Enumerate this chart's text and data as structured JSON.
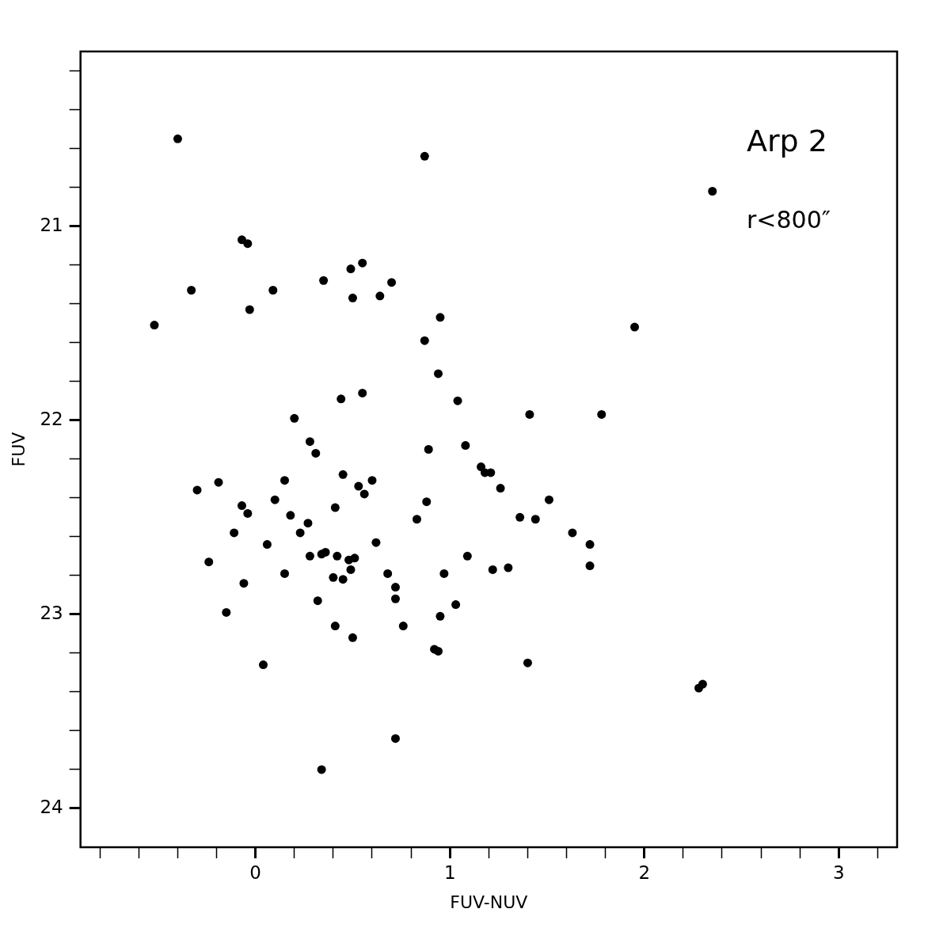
{
  "chart_data": {
    "type": "scatter",
    "xlabel": "FUV-NUV",
    "ylabel": "FUV",
    "marker": "circle",
    "grid": false,
    "legend": false,
    "annotations": [
      "Arp 2",
      "r<800″"
    ],
    "xlim": [
      -0.9,
      3.3
    ],
    "ylim": [
      24.2,
      20.1
    ],
    "xticks": [
      {
        "value": -0.8,
        "label": null
      },
      {
        "value": -0.6,
        "label": null
      },
      {
        "value": -0.4,
        "label": null
      },
      {
        "value": -0.2,
        "label": null
      },
      0,
      {
        "value": 0.2,
        "label": null
      },
      {
        "value": 0.4,
        "label": null
      },
      {
        "value": 0.6,
        "label": null
      },
      {
        "value": 0.8,
        "label": null
      },
      1,
      {
        "value": 1.2,
        "label": null
      },
      {
        "value": 1.4,
        "label": null
      },
      {
        "value": 1.6,
        "label": null
      },
      {
        "value": 1.8,
        "label": null
      },
      2,
      {
        "value": 2.2,
        "label": null
      },
      {
        "value": 2.4,
        "label": null
      },
      {
        "value": 2.6,
        "label": null
      },
      {
        "value": 2.8,
        "label": null
      },
      3,
      {
        "value": 3.2,
        "label": null
      }
    ],
    "yticks": [
      {
        "value": 20.2,
        "label": null
      },
      {
        "value": 20.4,
        "label": null
      },
      {
        "value": 20.6,
        "label": null
      },
      {
        "value": 20.8,
        "label": null
      },
      21,
      {
        "value": 21.2,
        "label": null
      },
      {
        "value": 21.4,
        "label": null
      },
      {
        "value": 21.6,
        "label": null
      },
      {
        "value": 21.8,
        "label": null
      },
      22,
      {
        "value": 22.2,
        "label": null
      },
      {
        "value": 22.4,
        "label": null
      },
      {
        "value": 22.6,
        "label": null
      },
      {
        "value": 22.8,
        "label": null
      },
      23,
      {
        "value": 23.2,
        "label": null
      },
      {
        "value": 23.4,
        "label": null
      },
      {
        "value": 23.6,
        "label": null
      },
      {
        "value": 23.8,
        "label": null
      },
      24
    ],
    "series": [
      {
        "color": "#000000",
        "x": [
          -0.4,
          0.87,
          2.35,
          -0.07,
          -0.04,
          0.55,
          0.49,
          0.35,
          0.7,
          -0.33,
          0.09,
          0.5,
          0.64,
          -0.03,
          -0.52,
          0.95,
          1.95,
          0.87,
          0.94,
          0.55,
          0.44,
          1.04,
          1.41,
          1.78,
          0.2,
          0.28,
          0.89,
          1.08,
          0.31,
          1.16,
          1.18,
          1.21,
          0.45,
          -0.3,
          -0.19,
          0.15,
          0.6,
          1.26,
          0.53,
          0.56,
          0.1,
          1.51,
          0.41,
          0.88,
          -0.07,
          -0.04,
          0.18,
          1.36,
          1.44,
          0.83,
          0.27,
          -0.11,
          0.23,
          1.63,
          0.06,
          0.62,
          1.72,
          0.34,
          0.36,
          0.28,
          0.42,
          0.48,
          0.51,
          1.09,
          -0.24,
          0.49,
          0.15,
          0.68,
          0.4,
          0.45,
          0.97,
          1.22,
          1.3,
          1.72,
          -0.06,
          0.72,
          0.72,
          0.32,
          1.03,
          -0.15,
          0.95,
          0.41,
          0.76,
          0.5,
          0.92,
          0.94,
          1.4,
          0.04,
          2.28,
          2.3,
          0.72,
          0.34
        ],
        "values": [
          20.55,
          20.64,
          20.82,
          21.07,
          21.09,
          21.19,
          21.22,
          21.28,
          21.29,
          21.33,
          21.33,
          21.37,
          21.36,
          21.43,
          21.51,
          21.47,
          21.52,
          21.59,
          21.76,
          21.86,
          21.89,
          21.9,
          21.97,
          21.97,
          21.99,
          22.11,
          22.15,
          22.13,
          22.17,
          22.24,
          22.27,
          22.27,
          22.28,
          22.36,
          22.32,
          22.31,
          22.31,
          22.35,
          22.34,
          22.38,
          22.41,
          22.41,
          22.45,
          22.42,
          22.44,
          22.48,
          22.49,
          22.5,
          22.51,
          22.51,
          22.53,
          22.58,
          22.58,
          22.58,
          22.64,
          22.63,
          22.64,
          22.69,
          22.68,
          22.7,
          22.7,
          22.72,
          22.71,
          22.7,
          22.73,
          22.77,
          22.79,
          22.79,
          22.81,
          22.82,
          22.79,
          22.77,
          22.76,
          22.75,
          22.84,
          22.86,
          22.92,
          22.93,
          22.95,
          22.99,
          23.01,
          23.06,
          23.06,
          23.12,
          23.18,
          23.19,
          23.25,
          23.26,
          23.38,
          23.36,
          23.64,
          23.8
        ]
      }
    ]
  }
}
